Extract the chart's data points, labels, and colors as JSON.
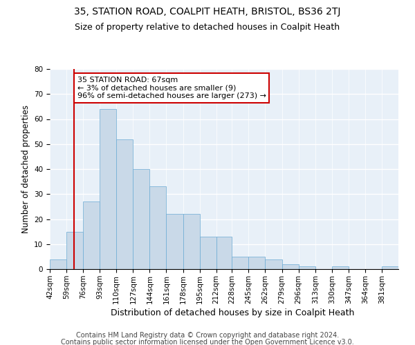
{
  "title1": "35, STATION ROAD, COALPIT HEATH, BRISTOL, BS36 2TJ",
  "title2": "Size of property relative to detached houses in Coalpit Heath",
  "xlabel": "Distribution of detached houses by size in Coalpit Heath",
  "ylabel": "Number of detached properties",
  "footnote1": "Contains HM Land Registry data © Crown copyright and database right 2024.",
  "footnote2": "Contains public sector information licensed under the Open Government Licence v3.0.",
  "bin_labels": [
    "42sqm",
    "59sqm",
    "76sqm",
    "93sqm",
    "110sqm",
    "127sqm",
    "144sqm",
    "161sqm",
    "178sqm",
    "195sqm",
    "212sqm",
    "228sqm",
    "245sqm",
    "262sqm",
    "279sqm",
    "296sqm",
    "313sqm",
    "330sqm",
    "347sqm",
    "364sqm",
    "381sqm"
  ],
  "bar_values": [
    4,
    15,
    27,
    64,
    52,
    40,
    33,
    22,
    22,
    13,
    13,
    5,
    5,
    4,
    2,
    1,
    0,
    1,
    0,
    0,
    1
  ],
  "bin_edges": [
    42,
    59,
    76,
    93,
    110,
    127,
    144,
    161,
    178,
    195,
    212,
    228,
    245,
    262,
    279,
    296,
    313,
    330,
    347,
    364,
    381,
    398
  ],
  "bar_color": "#c9d9e8",
  "bar_edgecolor": "#6aaad4",
  "property_value": 67,
  "vline_color": "#cc0000",
  "annotation_text": "35 STATION ROAD: 67sqm\n← 3% of detached houses are smaller (9)\n96% of semi-detached houses are larger (273) →",
  "annotation_box_color": "#ffffff",
  "annotation_box_edgecolor": "#cc0000",
  "ylim": [
    0,
    80
  ],
  "yticks": [
    0,
    10,
    20,
    30,
    40,
    50,
    60,
    70,
    80
  ],
  "background_color": "#e8f0f8",
  "grid_color": "#ffffff",
  "title1_fontsize": 10,
  "title2_fontsize": 9,
  "xlabel_fontsize": 9,
  "ylabel_fontsize": 8.5,
  "tick_fontsize": 7.5,
  "footnote_fontsize": 7,
  "annotation_fontsize": 8
}
